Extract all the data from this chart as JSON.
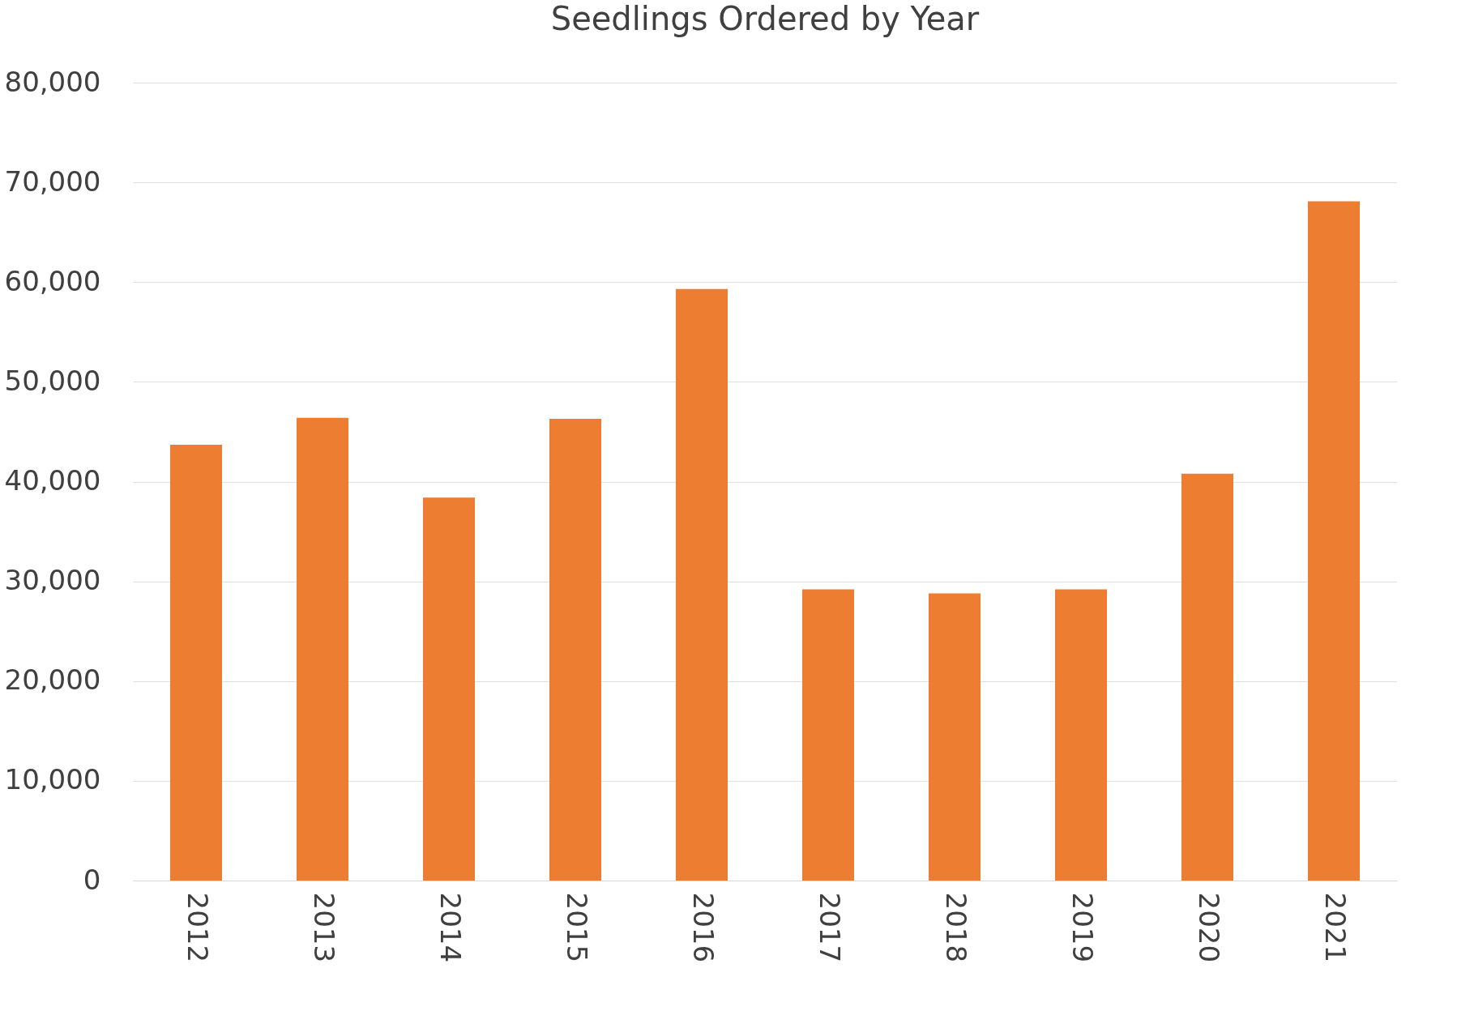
{
  "chart_data": {
    "type": "bar",
    "title": "Seedlings Ordered by Year",
    "categories": [
      "2012",
      "2013",
      "2014",
      "2015",
      "2016",
      "2017",
      "2018",
      "2019",
      "2020",
      "2021"
    ],
    "values": [
      43700,
      46400,
      38400,
      46300,
      59300,
      29200,
      28800,
      29200,
      40800,
      68100
    ],
    "color": "#ed7d31",
    "ylim": [
      0,
      80000
    ],
    "yticks": [
      0,
      {
        "value": 10000,
        "label": "10,000"
      },
      {
        "value": 20000,
        "label": "20,000"
      },
      {
        "value": 30000,
        "label": "30,000"
      },
      {
        "value": 40000,
        "label": "40,000"
      },
      {
        "value": 50000,
        "label": "50,000"
      },
      {
        "value": 60000,
        "label": "60,000"
      },
      {
        "value": 70000,
        "label": "70,000"
      },
      {
        "value": 80000,
        "label": "80,000"
      }
    ],
    "grid": "y"
  }
}
